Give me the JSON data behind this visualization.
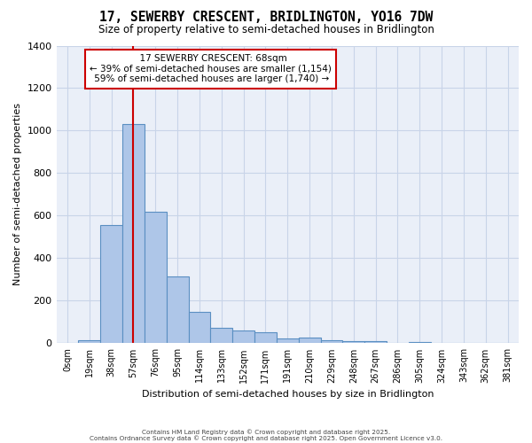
{
  "title_line1": "17, SEWERBY CRESCENT, BRIDLINGTON, YO16 7DW",
  "title_line2": "Size of property relative to semi-detached houses in Bridlington",
  "xlabel": "Distribution of semi-detached houses by size in Bridlington",
  "ylabel": "Number of semi-detached properties",
  "footer_line1": "Contains HM Land Registry data © Crown copyright and database right 2025.",
  "footer_line2": "Contains Ordnance Survey data © Crown copyright and database right 2025. Open Government Licence v3.0.",
  "bin_labels": [
    "0sqm",
    "19sqm",
    "38sqm",
    "57sqm",
    "76sqm",
    "95sqm",
    "114sqm",
    "133sqm",
    "152sqm",
    "171sqm",
    "191sqm",
    "210sqm",
    "229sqm",
    "248sqm",
    "267sqm",
    "286sqm",
    "305sqm",
    "324sqm",
    "343sqm",
    "362sqm",
    "381sqm"
  ],
  "bar_values": [
    0,
    15,
    555,
    1030,
    620,
    315,
    148,
    72,
    60,
    52,
    22,
    28,
    15,
    10,
    10,
    0,
    8,
    0,
    0,
    0,
    0
  ],
  "bar_color": "#aec6e8",
  "bar_edge_color": "#5a8fc2",
  "property_bin_index": 3,
  "property_label": "17 SEWERBY CRESCENT: 68sqm",
  "pct_smaller": 39,
  "n_smaller": 1154,
  "pct_larger": 59,
  "n_larger": 1740,
  "annotation_box_color": "#ffffff",
  "annotation_box_edge_color": "#cc0000",
  "vline_color": "#cc0000",
  "ylim": [
    0,
    1400
  ],
  "yticks": [
    0,
    200,
    400,
    600,
    800,
    1000,
    1200,
    1400
  ],
  "grid_color": "#c8d4e8",
  "background_color": "#eaeff8"
}
